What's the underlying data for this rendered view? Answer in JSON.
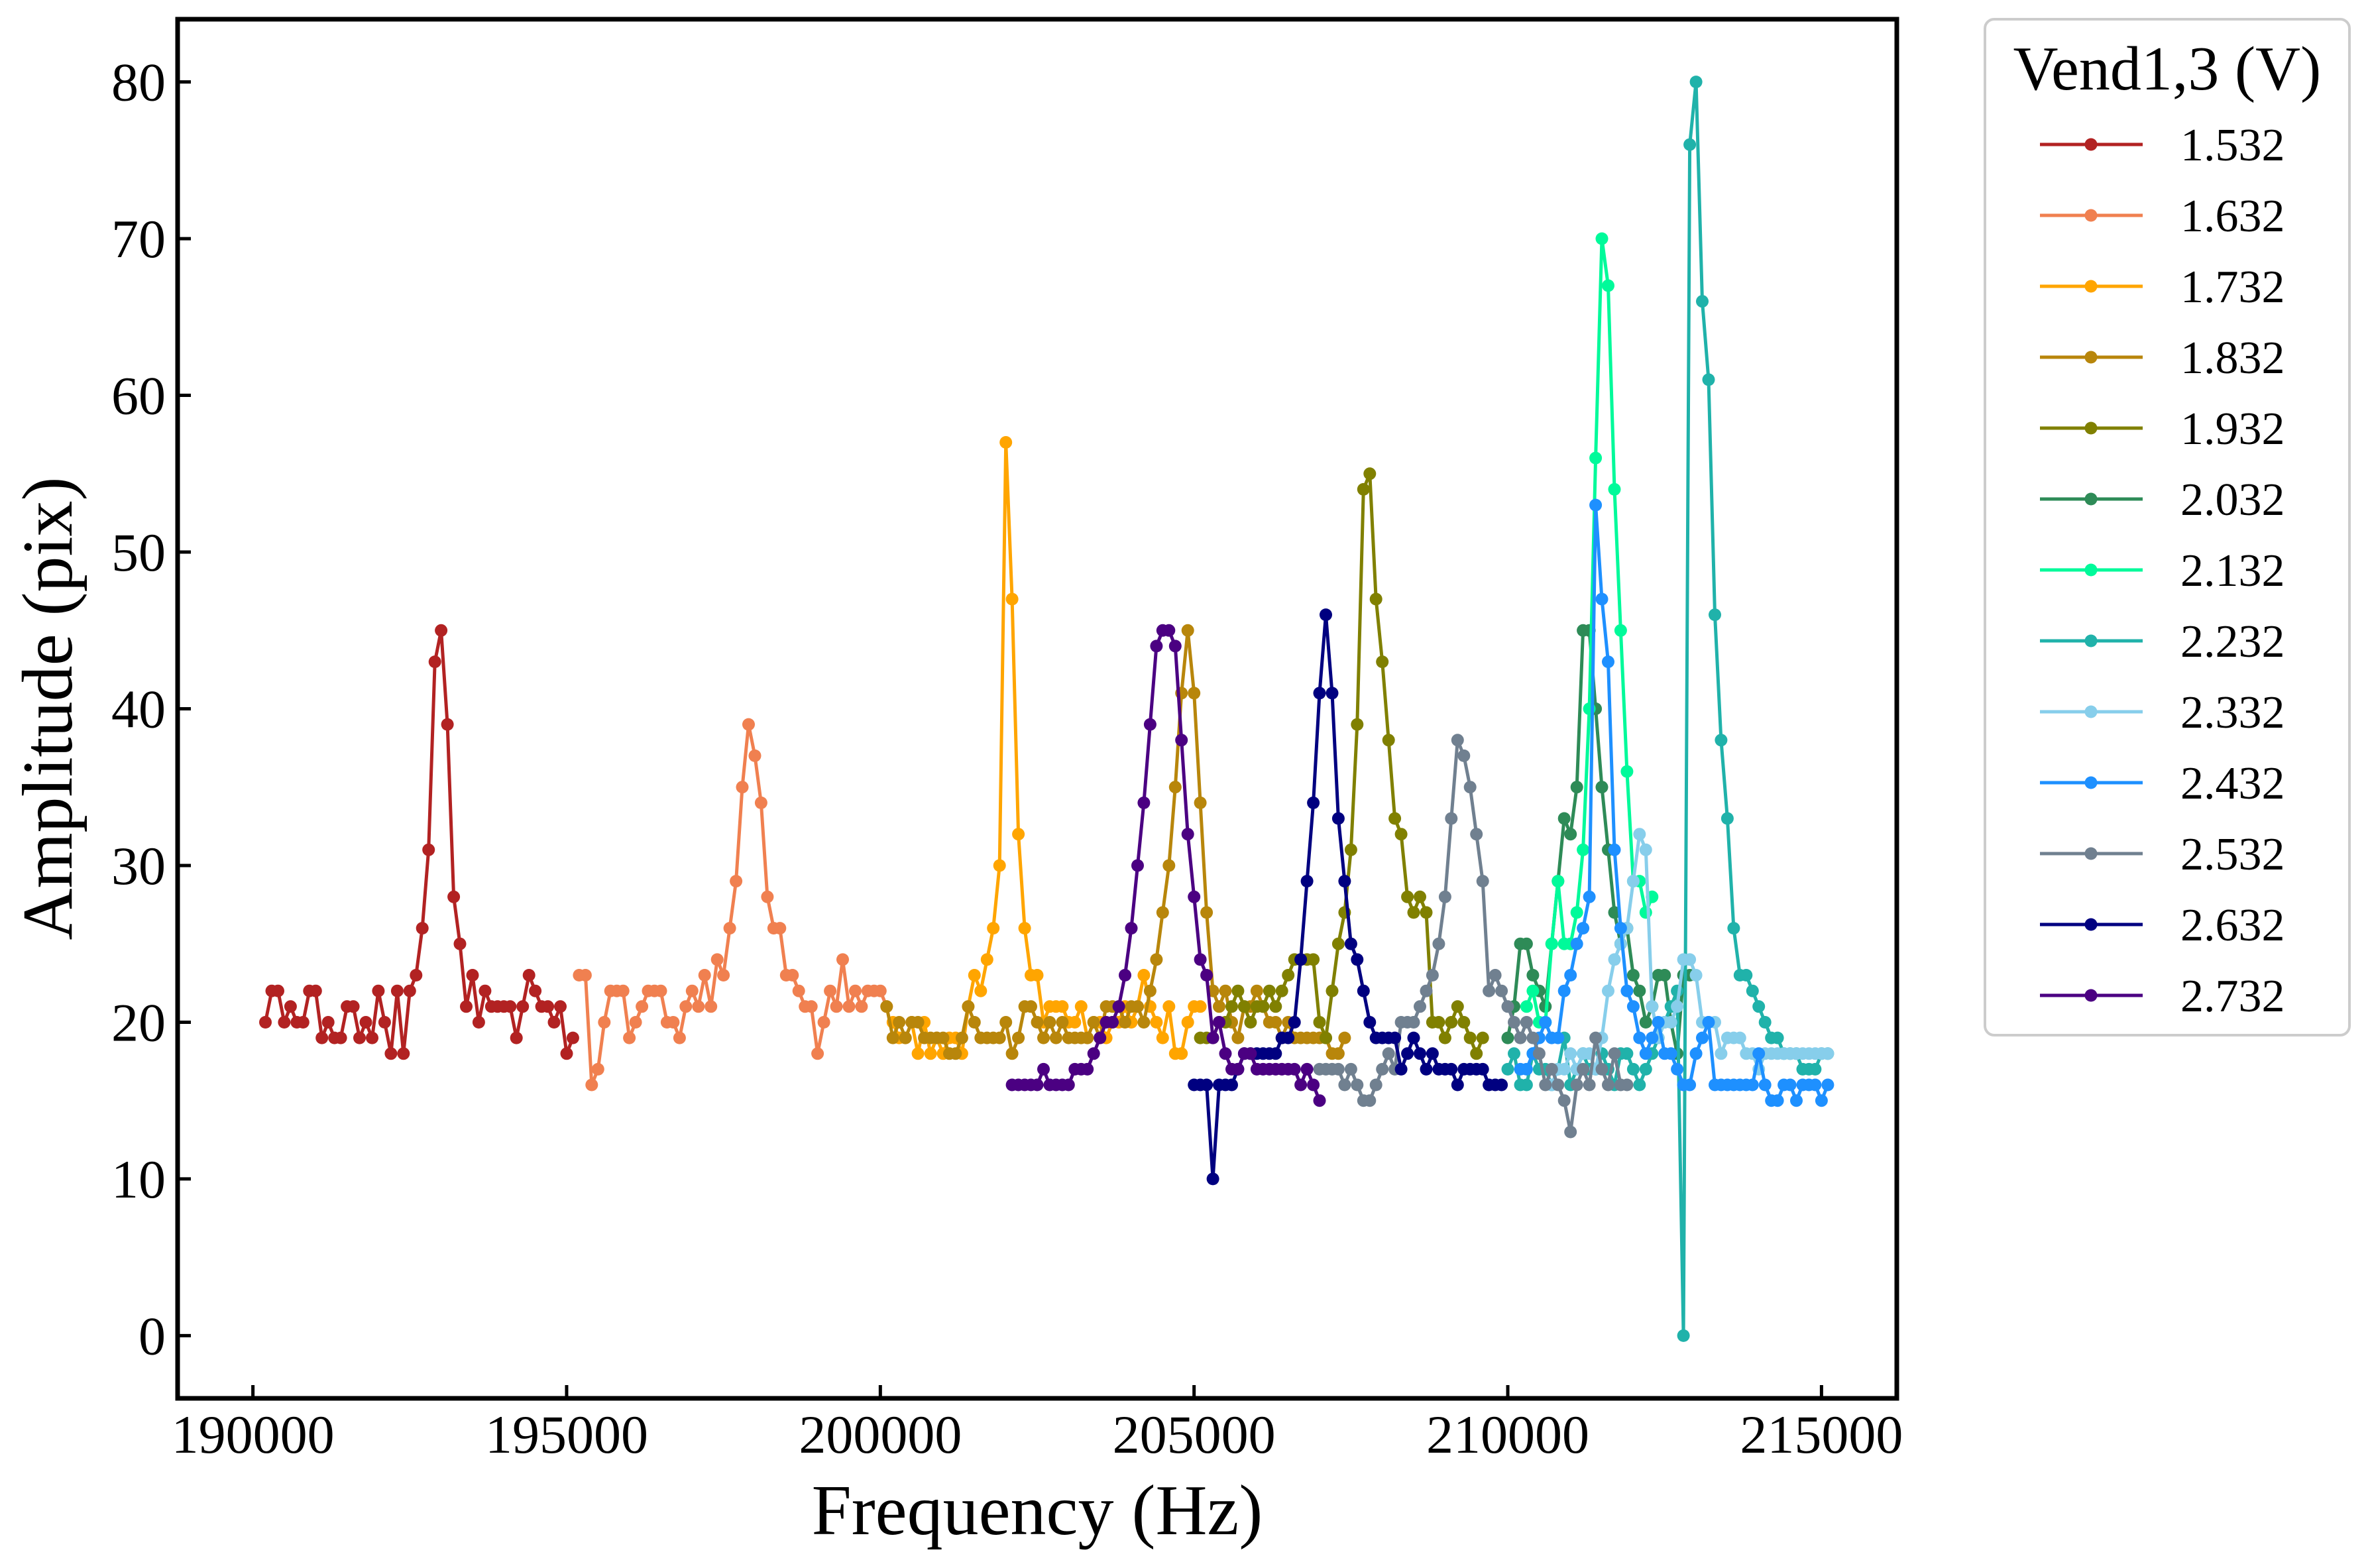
{
  "chart_data": {
    "type": "line",
    "title": "",
    "xlabel": "Frequency (Hz)",
    "ylabel": "Amplitude (pix)",
    "xlim": [
      188800,
      216200
    ],
    "ylim": [
      -4,
      84
    ],
    "xticks": [
      190000,
      195000,
      200000,
      205000,
      210000,
      215000
    ],
    "yticks": [
      0,
      10,
      20,
      30,
      40,
      50,
      60,
      70,
      80
    ],
    "grid": false,
    "legend": {
      "title": "Vend1,3 (V)",
      "placement": "outside-right"
    },
    "series": [
      {
        "name": "1.532",
        "color": "#b22222",
        "x0": 190200,
        "dx": 100,
        "y": [
          20,
          22,
          22,
          20,
          21,
          20,
          20,
          22,
          22,
          19,
          20,
          19,
          19,
          21,
          21,
          19,
          20,
          19,
          22,
          20,
          18,
          22,
          18,
          22,
          23,
          26,
          31,
          43,
          45,
          39,
          28,
          25,
          21,
          23,
          20,
          22,
          21,
          21,
          21,
          21,
          19,
          21,
          23,
          22,
          21,
          21,
          20,
          21,
          18,
          19
        ]
      },
      {
        "name": "1.632",
        "color": "#f08050",
        "x0": 195200,
        "dx": 100,
        "y": [
          23,
          23,
          16,
          17,
          20,
          22,
          22,
          22,
          19,
          20,
          21,
          22,
          22,
          22,
          20,
          20,
          19,
          21,
          22,
          21,
          23,
          21,
          24,
          23,
          26,
          29,
          35,
          39,
          37,
          34,
          28,
          26,
          26,
          23,
          23,
          22,
          21,
          21,
          18,
          20,
          22,
          21,
          24,
          21,
          22,
          21,
          22,
          22,
          22,
          21
        ]
      },
      {
        "name": "1.732",
        "color": "#ffa500",
        "x0": 200200,
        "dx": 100,
        "y": [
          20,
          19,
          19,
          20,
          18,
          20,
          18,
          19,
          18,
          19,
          19,
          18,
          21,
          23,
          22,
          24,
          26,
          30,
          57,
          47,
          32,
          26,
          23,
          23,
          20,
          21,
          21,
          21,
          20,
          20,
          21,
          19,
          20,
          20,
          19,
          20,
          20,
          21,
          20,
          21,
          23,
          21,
          20,
          19,
          21,
          18,
          18,
          20,
          21,
          21
        ]
      },
      {
        "name": "1.832",
        "color": "#b8860b",
        "x0": 200100,
        "dx": 100,
        "y": [
          21,
          19,
          20,
          19,
          20,
          20,
          19,
          19,
          19,
          19,
          18,
          18,
          19,
          21,
          20,
          19,
          19,
          19,
          19,
          20,
          18,
          19,
          21,
          21,
          20,
          19,
          20,
          19,
          20,
          19,
          19,
          19,
          19,
          20,
          19,
          21,
          21,
          21,
          20,
          21,
          21,
          20,
          22,
          24,
          27,
          30,
          35,
          41,
          45,
          41,
          34,
          27,
          22,
          21,
          22,
          20,
          19,
          21,
          21,
          22,
          21,
          20,
          20,
          19,
          20,
          19,
          19,
          19,
          19,
          19,
          19,
          18,
          18,
          19
        ]
      },
      {
        "name": "1.932",
        "color": "#808000",
        "x0": 205100,
        "dx": 100,
        "y": [
          19,
          19,
          19,
          20,
          20,
          21,
          22,
          21,
          20,
          21,
          21,
          22,
          21,
          22,
          23,
          24,
          24,
          24,
          24,
          20,
          19,
          22,
          25,
          27,
          31,
          39,
          54,
          55,
          47,
          43,
          38,
          33,
          32,
          28,
          27,
          28,
          27,
          20,
          20,
          19,
          20,
          21,
          20,
          19,
          18,
          19
        ]
      },
      {
        "name": "2.032",
        "color": "#2e8b57",
        "x0": 210000,
        "dx": 100,
        "y": [
          19,
          21,
          25,
          25,
          23,
          22,
          21,
          25,
          29,
          33,
          32,
          35,
          45,
          45,
          40,
          35,
          31,
          27,
          25,
          26,
          23,
          22,
          20,
          21,
          23,
          23,
          20,
          18,
          23,
          23
        ]
      },
      {
        "name": "2.132",
        "color": "#00fa9a",
        "x0": 210300,
        "dx": 100,
        "y": [
          21,
          22,
          20,
          20,
          25,
          29,
          25,
          25,
          27,
          31,
          40,
          56,
          70,
          67,
          54,
          45,
          36,
          29,
          29,
          27,
          28
        ]
      },
      {
        "name": "2.232",
        "color": "#20b2aa",
        "x0": 210000,
        "dx": 100,
        "y": [
          17,
          18,
          16,
          16,
          18,
          17,
          17,
          16,
          17,
          19,
          16,
          17,
          18,
          17,
          17,
          18,
          17,
          16,
          18,
          18,
          17,
          16,
          17,
          18,
          19,
          20,
          21,
          22,
          0,
          76,
          80,
          66,
          61,
          46,
          38,
          33,
          26,
          23,
          23,
          22,
          21,
          20,
          19,
          19,
          18,
          18,
          18,
          17,
          17,
          17,
          18,
          18
        ]
      },
      {
        "name": "2.332",
        "color": "#87ceeb",
        "x0": 210700,
        "dx": 100,
        "y": [
          16,
          17,
          17,
          18,
          17,
          18,
          18,
          17,
          19,
          22,
          24,
          25,
          26,
          29,
          32,
          31,
          21,
          19,
          20,
          20,
          21,
          24,
          24,
          23,
          20,
          20,
          20,
          18,
          19,
          19,
          19,
          18,
          18,
          17,
          18,
          18,
          18,
          18,
          18,
          18,
          18,
          18,
          18,
          18,
          18
        ]
      },
      {
        "name": "2.432",
        "color": "#1e90ff",
        "x0": 210200,
        "dx": 100,
        "y": [
          17,
          17,
          18,
          19,
          20,
          19,
          19,
          22,
          23,
          25,
          26,
          28,
          53,
          47,
          43,
          31,
          26,
          22,
          21,
          19,
          18,
          19,
          20,
          18,
          18,
          17,
          16,
          16,
          18,
          19,
          20,
          16,
          16,
          16,
          16,
          16,
          16,
          16,
          18,
          16,
          15,
          15,
          16,
          16,
          15,
          16,
          16,
          16,
          15,
          16
        ]
      },
      {
        "name": "2.532",
        "color": "#708090",
        "x0": 207000,
        "dx": 100,
        "y": [
          17,
          17,
          17,
          17,
          16,
          17,
          16,
          15,
          15,
          16,
          17,
          18,
          17,
          20,
          20,
          20,
          21,
          22,
          23,
          25,
          28,
          33,
          38,
          37,
          35,
          32,
          29,
          22,
          23,
          22,
          21,
          20,
          19,
          20,
          19,
          18,
          16,
          17,
          16,
          15,
          13,
          16,
          17,
          16,
          19,
          17,
          16,
          18,
          16,
          16
        ]
      },
      {
        "name": "2.632",
        "color": "#000080",
        "x0": 205000,
        "dx": 100,
        "y": [
          16,
          16,
          16,
          10,
          16,
          16,
          16,
          17,
          18,
          18,
          18,
          18,
          18,
          18,
          19,
          19,
          20,
          24,
          29,
          34,
          41,
          46,
          41,
          33,
          29,
          25,
          24,
          22,
          20,
          19,
          19,
          19,
          19,
          17,
          18,
          19,
          18,
          17,
          18,
          17,
          17,
          17,
          16,
          17,
          17,
          17,
          17,
          16,
          16,
          16
        ]
      },
      {
        "name": "2.732",
        "color": "#4b0082",
        "x0": 202100,
        "dx": 100,
        "y": [
          16,
          16,
          16,
          16,
          16,
          17,
          16,
          16,
          16,
          16,
          17,
          17,
          17,
          18,
          19,
          20,
          20,
          21,
          23,
          26,
          30,
          34,
          39,
          44,
          45,
          45,
          44,
          38,
          32,
          28,
          24,
          23,
          19,
          20,
          18,
          17,
          17,
          18,
          18,
          17,
          17,
          17,
          17,
          17,
          17,
          17,
          16,
          17,
          16,
          15
        ]
      }
    ]
  }
}
